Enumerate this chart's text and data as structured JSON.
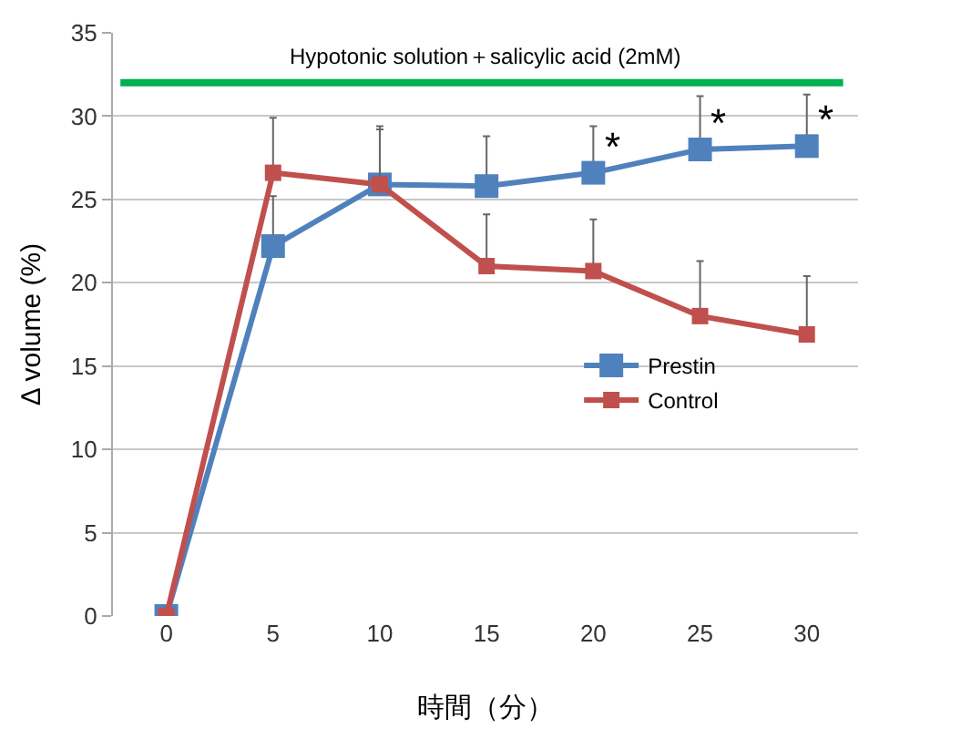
{
  "chart_data": {
    "type": "line",
    "xlabel": "時間（分）",
    "ylabel": "Δ volume (%)",
    "x": [
      0,
      5,
      10,
      15,
      20,
      25,
      30
    ],
    "series": [
      {
        "name": "Prestin",
        "color": "#4f81bd",
        "values": [
          0,
          22.2,
          25.9,
          25.8,
          26.6,
          28.0,
          28.2
        ],
        "errors": [
          null,
          [
            22.2,
            25.2
          ],
          [
            25.9,
            29.4
          ],
          [
            25.8,
            28.8
          ],
          [
            26.6,
            29.4
          ],
          [
            28.0,
            31.2
          ],
          [
            28.2,
            31.3
          ]
        ]
      },
      {
        "name": "Control",
        "color": "#c0504d",
        "values": [
          0,
          26.6,
          25.9,
          21.0,
          20.7,
          18.0,
          16.9
        ],
        "errors": [
          null,
          [
            26.6,
            29.9
          ],
          [
            25.9,
            29.2
          ],
          [
            21.0,
            24.1
          ],
          [
            20.7,
            23.8
          ],
          [
            18.0,
            21.3
          ],
          [
            16.9,
            20.4
          ]
        ]
      }
    ],
    "xlim": [
      -2.5,
      32.4
    ],
    "xticks": [
      0,
      5,
      10,
      15,
      20,
      25,
      30
    ],
    "ylim": [
      0,
      35
    ],
    "yticks": [
      0,
      5,
      10,
      15,
      20,
      25,
      30,
      35
    ],
    "ref_lines": [
      {
        "axis": "y",
        "value": 32,
        "label": "Hypotonic solution＋salicylic acid (2mM)",
        "color": "#00b050"
      }
    ],
    "annotations": [
      {
        "text": "*",
        "x": 20,
        "y": 26.6
      },
      {
        "text": "*",
        "x": 25,
        "y": 28.0
      },
      {
        "text": "*",
        "x": 30,
        "y": 28.2
      }
    ],
    "grid": "y",
    "legend": "right",
    "marker": "square",
    "line_style": "solid"
  }
}
